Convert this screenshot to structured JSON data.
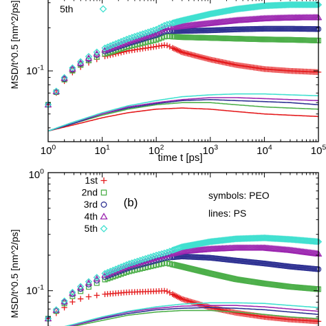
{
  "chart_data": [
    {
      "type": "scatter",
      "panel": "a",
      "xscale": "log",
      "yscale": "log",
      "xlabel": "time t [ps]",
      "ylabel": "MSD/t^0.5 [nm^2/ps]",
      "xlim": [
        1,
        100000
      ],
      "ylim_visible": [
        0.035,
        0.3
      ],
      "x_ticks": [
        1,
        10,
        100,
        1000,
        10000,
        100000
      ],
      "x_tick_labels": [
        "10^0",
        "10^1",
        "10^2",
        "10^3",
        "10^4",
        "10^5"
      ],
      "y_tick_labels": [
        "10^-1"
      ],
      "legend_visible": [
        "5th"
      ],
      "series": [
        {
          "name": "1st",
          "marker": "plus",
          "color": "#e41a1c",
          "kind": "symbols",
          "x": [
            1,
            2,
            3,
            5,
            10,
            30,
            100,
            150,
            300,
            1000,
            3000,
            10000,
            30000,
            100000
          ],
          "y": [
            0.058,
            0.085,
            0.1,
            0.112,
            0.125,
            0.138,
            0.148,
            0.152,
            0.135,
            0.12,
            0.11,
            0.103,
            0.1,
            0.098
          ]
        },
        {
          "name": "2nd",
          "marker": "square",
          "color": "#4daf4a",
          "kind": "symbols",
          "x": [
            1,
            2,
            3,
            5,
            10,
            30,
            100,
            150,
            300,
            1000,
            3000,
            10000,
            30000,
            100000
          ],
          "y": [
            0.058,
            0.087,
            0.103,
            0.116,
            0.13,
            0.148,
            0.165,
            0.175,
            0.172,
            0.17,
            0.168,
            0.166,
            0.165,
            0.163
          ]
        },
        {
          "name": "3rd",
          "marker": "circle",
          "color": "#2e3192",
          "kind": "symbols",
          "x": [
            1,
            2,
            3,
            5,
            10,
            30,
            100,
            150,
            300,
            1000,
            3000,
            10000,
            30000,
            100000
          ],
          "y": [
            0.058,
            0.088,
            0.105,
            0.118,
            0.135,
            0.155,
            0.178,
            0.19,
            0.19,
            0.192,
            0.195,
            0.197,
            0.197,
            0.196
          ]
        },
        {
          "name": "4th",
          "marker": "triangle",
          "color": "#9c27b0",
          "kind": "symbols",
          "x": [
            1,
            2,
            3,
            5,
            10,
            30,
            100,
            150,
            300,
            1000,
            3000,
            10000,
            30000,
            100000
          ],
          "y": [
            0.058,
            0.089,
            0.106,
            0.12,
            0.138,
            0.16,
            0.185,
            0.2,
            0.205,
            0.215,
            0.225,
            0.232,
            0.235,
            0.236
          ]
        },
        {
          "name": "5th",
          "marker": "diamond",
          "color": "#40e0d0",
          "kind": "symbols",
          "x": [
            1,
            2,
            3,
            5,
            10,
            30,
            100,
            150,
            300,
            1000,
            3000,
            10000,
            30000,
            100000
          ],
          "y": [
            0.058,
            0.09,
            0.108,
            0.123,
            0.142,
            0.168,
            0.195,
            0.21,
            0.225,
            0.25,
            0.27,
            0.285,
            0.29,
            0.29
          ]
        },
        {
          "name": "1st",
          "color": "#e41a1c",
          "kind": "line",
          "x": [
            1,
            3,
            10,
            30,
            100,
            300,
            1000,
            3000,
            10000,
            30000,
            100000
          ],
          "y": [
            0.038,
            0.042,
            0.047,
            0.051,
            0.054,
            0.055,
            0.054,
            0.052,
            0.05,
            0.049,
            0.048
          ]
        },
        {
          "name": "2nd",
          "color": "#4daf4a",
          "kind": "line",
          "x": [
            1,
            3,
            10,
            30,
            100,
            300,
            1000,
            3000,
            10000,
            30000,
            100000
          ],
          "y": [
            0.038,
            0.043,
            0.049,
            0.054,
            0.058,
            0.06,
            0.06,
            0.058,
            0.056,
            0.055,
            0.054
          ]
        },
        {
          "name": "3rd",
          "color": "#2e3192",
          "kind": "line",
          "x": [
            1,
            3,
            10,
            30,
            100,
            300,
            1000,
            3000,
            10000,
            30000,
            100000
          ],
          "y": [
            0.038,
            0.043,
            0.05,
            0.055,
            0.059,
            0.062,
            0.063,
            0.062,
            0.061,
            0.06,
            0.058
          ]
        },
        {
          "name": "4th",
          "color": "#9c27b0",
          "kind": "line",
          "x": [
            1,
            3,
            10,
            30,
            100,
            300,
            1000,
            3000,
            10000,
            30000,
            100000
          ],
          "y": [
            0.038,
            0.044,
            0.05,
            0.056,
            0.06,
            0.063,
            0.065,
            0.065,
            0.064,
            0.063,
            0.062
          ]
        },
        {
          "name": "5th",
          "color": "#40e0d0",
          "kind": "line",
          "x": [
            1,
            3,
            10,
            30,
            100,
            300,
            1000,
            3000,
            10000,
            30000,
            100000
          ],
          "y": [
            0.038,
            0.044,
            0.051,
            0.057,
            0.062,
            0.066,
            0.068,
            0.069,
            0.069,
            0.068,
            0.067
          ]
        }
      ]
    },
    {
      "type": "scatter",
      "panel": "b",
      "panel_label": "(b)",
      "annotation_lines": [
        "symbols: PEO",
        "lines: PS"
      ],
      "xscale": "log",
      "yscale": "log",
      "ylabel": "MSD/t^0.5 [nm^2/ps]",
      "xlim": [
        1,
        100000
      ],
      "ylim_visible": [
        0.045,
        1
      ],
      "y_tick_labels": [
        "10^0",
        "10^-1"
      ],
      "legend": [
        "1st",
        "2nd",
        "3rd",
        "4th",
        "5th"
      ],
      "series": [
        {
          "name": "1st",
          "marker": "plus",
          "color": "#e41a1c",
          "kind": "symbols",
          "x": [
            1,
            2,
            3,
            5,
            10,
            30,
            100,
            150,
            300,
            1000,
            3000,
            10000,
            30000,
            100000
          ],
          "y": [
            0.058,
            0.072,
            0.082,
            0.088,
            0.093,
            0.097,
            0.099,
            0.1,
            0.085,
            0.072,
            0.065,
            0.06,
            0.057,
            0.055
          ]
        },
        {
          "name": "2nd",
          "marker": "square",
          "color": "#4daf4a",
          "kind": "symbols",
          "x": [
            1,
            2,
            3,
            5,
            10,
            30,
            100,
            150,
            300,
            1000,
            3000,
            10000,
            30000,
            100000
          ],
          "y": [
            0.058,
            0.078,
            0.092,
            0.105,
            0.122,
            0.145,
            0.165,
            0.172,
            0.16,
            0.14,
            0.125,
            0.115,
            0.108,
            0.103
          ]
        },
        {
          "name": "3rd",
          "marker": "circle",
          "color": "#2e3192",
          "kind": "symbols",
          "x": [
            1,
            2,
            3,
            5,
            10,
            30,
            100,
            150,
            300,
            1000,
            3000,
            10000,
            30000,
            100000
          ],
          "y": [
            0.058,
            0.08,
            0.096,
            0.11,
            0.128,
            0.155,
            0.18,
            0.19,
            0.195,
            0.19,
            0.18,
            0.17,
            0.16,
            0.152
          ]
        },
        {
          "name": "4th",
          "marker": "triangle",
          "color": "#9c27b0",
          "kind": "symbols",
          "x": [
            1,
            2,
            3,
            5,
            10,
            30,
            100,
            150,
            300,
            1000,
            3000,
            10000,
            30000,
            100000
          ],
          "y": [
            0.058,
            0.081,
            0.098,
            0.113,
            0.133,
            0.162,
            0.19,
            0.2,
            0.215,
            0.225,
            0.23,
            0.23,
            0.22,
            0.205
          ]
        },
        {
          "name": "5th",
          "marker": "diamond",
          "color": "#40e0d0",
          "kind": "symbols",
          "x": [
            1,
            2,
            3,
            5,
            10,
            30,
            100,
            150,
            300,
            1000,
            3000,
            10000,
            30000,
            100000
          ],
          "y": [
            0.058,
            0.082,
            0.1,
            0.116,
            0.137,
            0.168,
            0.2,
            0.21,
            0.235,
            0.26,
            0.275,
            0.28,
            0.272,
            0.26
          ]
        },
        {
          "name": "1st",
          "color": "#e41a1c",
          "kind": "line",
          "x": [
            1,
            3,
            10,
            30,
            100,
            300,
            1000,
            3000,
            10000,
            30000,
            100000
          ],
          "y": [
            0.045,
            0.046,
            0.047,
            0.048,
            0.048,
            0.048,
            0.047,
            0.046,
            0.046,
            0.045,
            0.045
          ]
        },
        {
          "name": "2nd",
          "color": "#4daf4a",
          "kind": "line",
          "x": [
            1,
            3,
            10,
            30,
            100,
            300,
            1000,
            3000,
            10000,
            30000,
            100000
          ],
          "y": [
            0.046,
            0.05,
            0.056,
            0.062,
            0.066,
            0.068,
            0.068,
            0.066,
            0.063,
            0.06,
            0.058
          ]
        },
        {
          "name": "3rd",
          "color": "#2e3192",
          "kind": "line",
          "x": [
            1,
            3,
            10,
            30,
            100,
            300,
            1000,
            3000,
            10000,
            30000,
            100000
          ],
          "y": [
            0.046,
            0.051,
            0.058,
            0.064,
            0.069,
            0.071,
            0.072,
            0.071,
            0.069,
            0.066,
            0.063
          ]
        },
        {
          "name": "4th",
          "color": "#9c27b0",
          "kind": "line",
          "x": [
            1,
            3,
            10,
            30,
            100,
            300,
            1000,
            3000,
            10000,
            30000,
            100000
          ],
          "y": [
            0.046,
            0.051,
            0.059,
            0.066,
            0.071,
            0.074,
            0.075,
            0.075,
            0.073,
            0.07,
            0.067
          ]
        },
        {
          "name": "5th",
          "color": "#40e0d0",
          "kind": "line",
          "x": [
            1,
            3,
            10,
            30,
            100,
            300,
            1000,
            3000,
            10000,
            30000,
            100000
          ],
          "y": [
            0.046,
            0.052,
            0.06,
            0.067,
            0.073,
            0.077,
            0.079,
            0.079,
            0.078,
            0.075,
            0.072
          ]
        }
      ]
    }
  ]
}
